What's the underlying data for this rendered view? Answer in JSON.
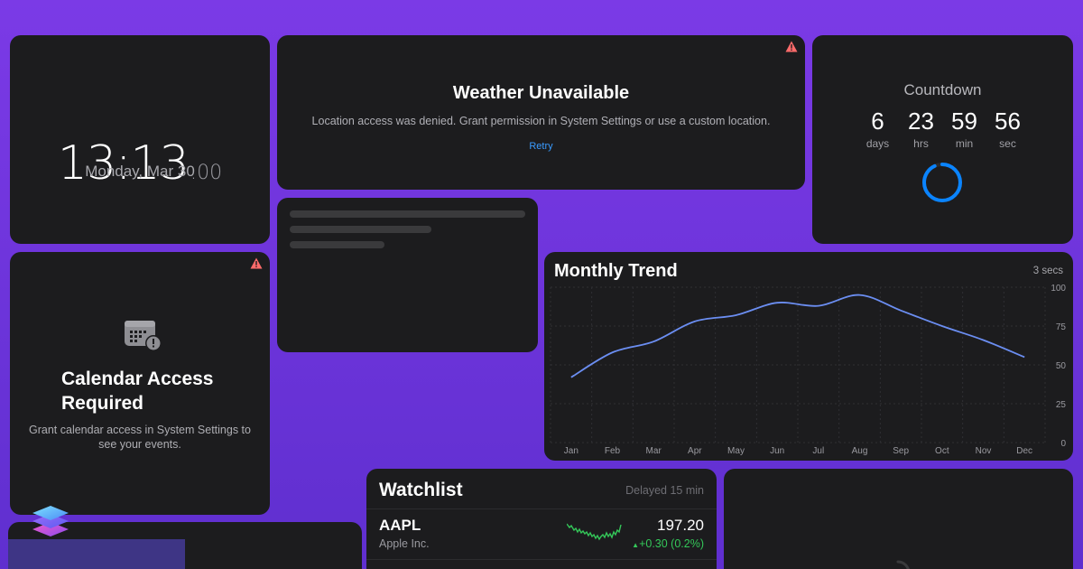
{
  "clock": {
    "time": "13:13",
    "seconds": ":00",
    "date": "Monday, Mar 30"
  },
  "weather": {
    "title": "Weather Unavailable",
    "message": "Location access was denied. Grant permission in System Settings or use a custom location.",
    "retry_label": "Retry",
    "warning_icon": "warning-triangle-icon"
  },
  "countdown": {
    "title": "Countdown",
    "units": [
      {
        "value": "6",
        "label": "days"
      },
      {
        "value": "23",
        "label": "hrs"
      },
      {
        "value": "59",
        "label": "min"
      },
      {
        "value": "56",
        "label": "sec"
      }
    ],
    "ring_progress": 0.93
  },
  "calendar": {
    "icon": "calendar-alert-icon",
    "title": "Calendar Access Required",
    "message": "Grant calendar access in System Settings to see your events.",
    "warning_icon": "warning-triangle-icon"
  },
  "chart_data": {
    "type": "line",
    "title": "Monthly Trend",
    "refresh": "3 secs",
    "categories": [
      "Jan",
      "Feb",
      "Mar",
      "Apr",
      "May",
      "Jun",
      "Jul",
      "Aug",
      "Sep",
      "Oct",
      "Nov",
      "Dec"
    ],
    "series": [
      {
        "values": [
          42,
          58,
          65,
          78,
          82,
          90,
          88,
          95,
          85,
          75,
          66,
          55
        ]
      }
    ],
    "y_ticks": [
      "100",
      "75",
      "50",
      "25",
      "0"
    ],
    "ylim": [
      0,
      100
    ],
    "grid": true,
    "line_color": "#6b8ef2"
  },
  "watchlist": {
    "title": "Watchlist",
    "status": "Delayed 15 min",
    "rows": [
      {
        "symbol": "AAPL",
        "name": "Apple Inc.",
        "price": "197.20",
        "change": "+0.30 (0.2%)",
        "change_color": "#34c759"
      }
    ]
  },
  "colors": {
    "background": "#7b3ae6",
    "card": "#1c1c1e",
    "accent_blue": "#0a84ff",
    "warning": "#ff6b6b"
  }
}
